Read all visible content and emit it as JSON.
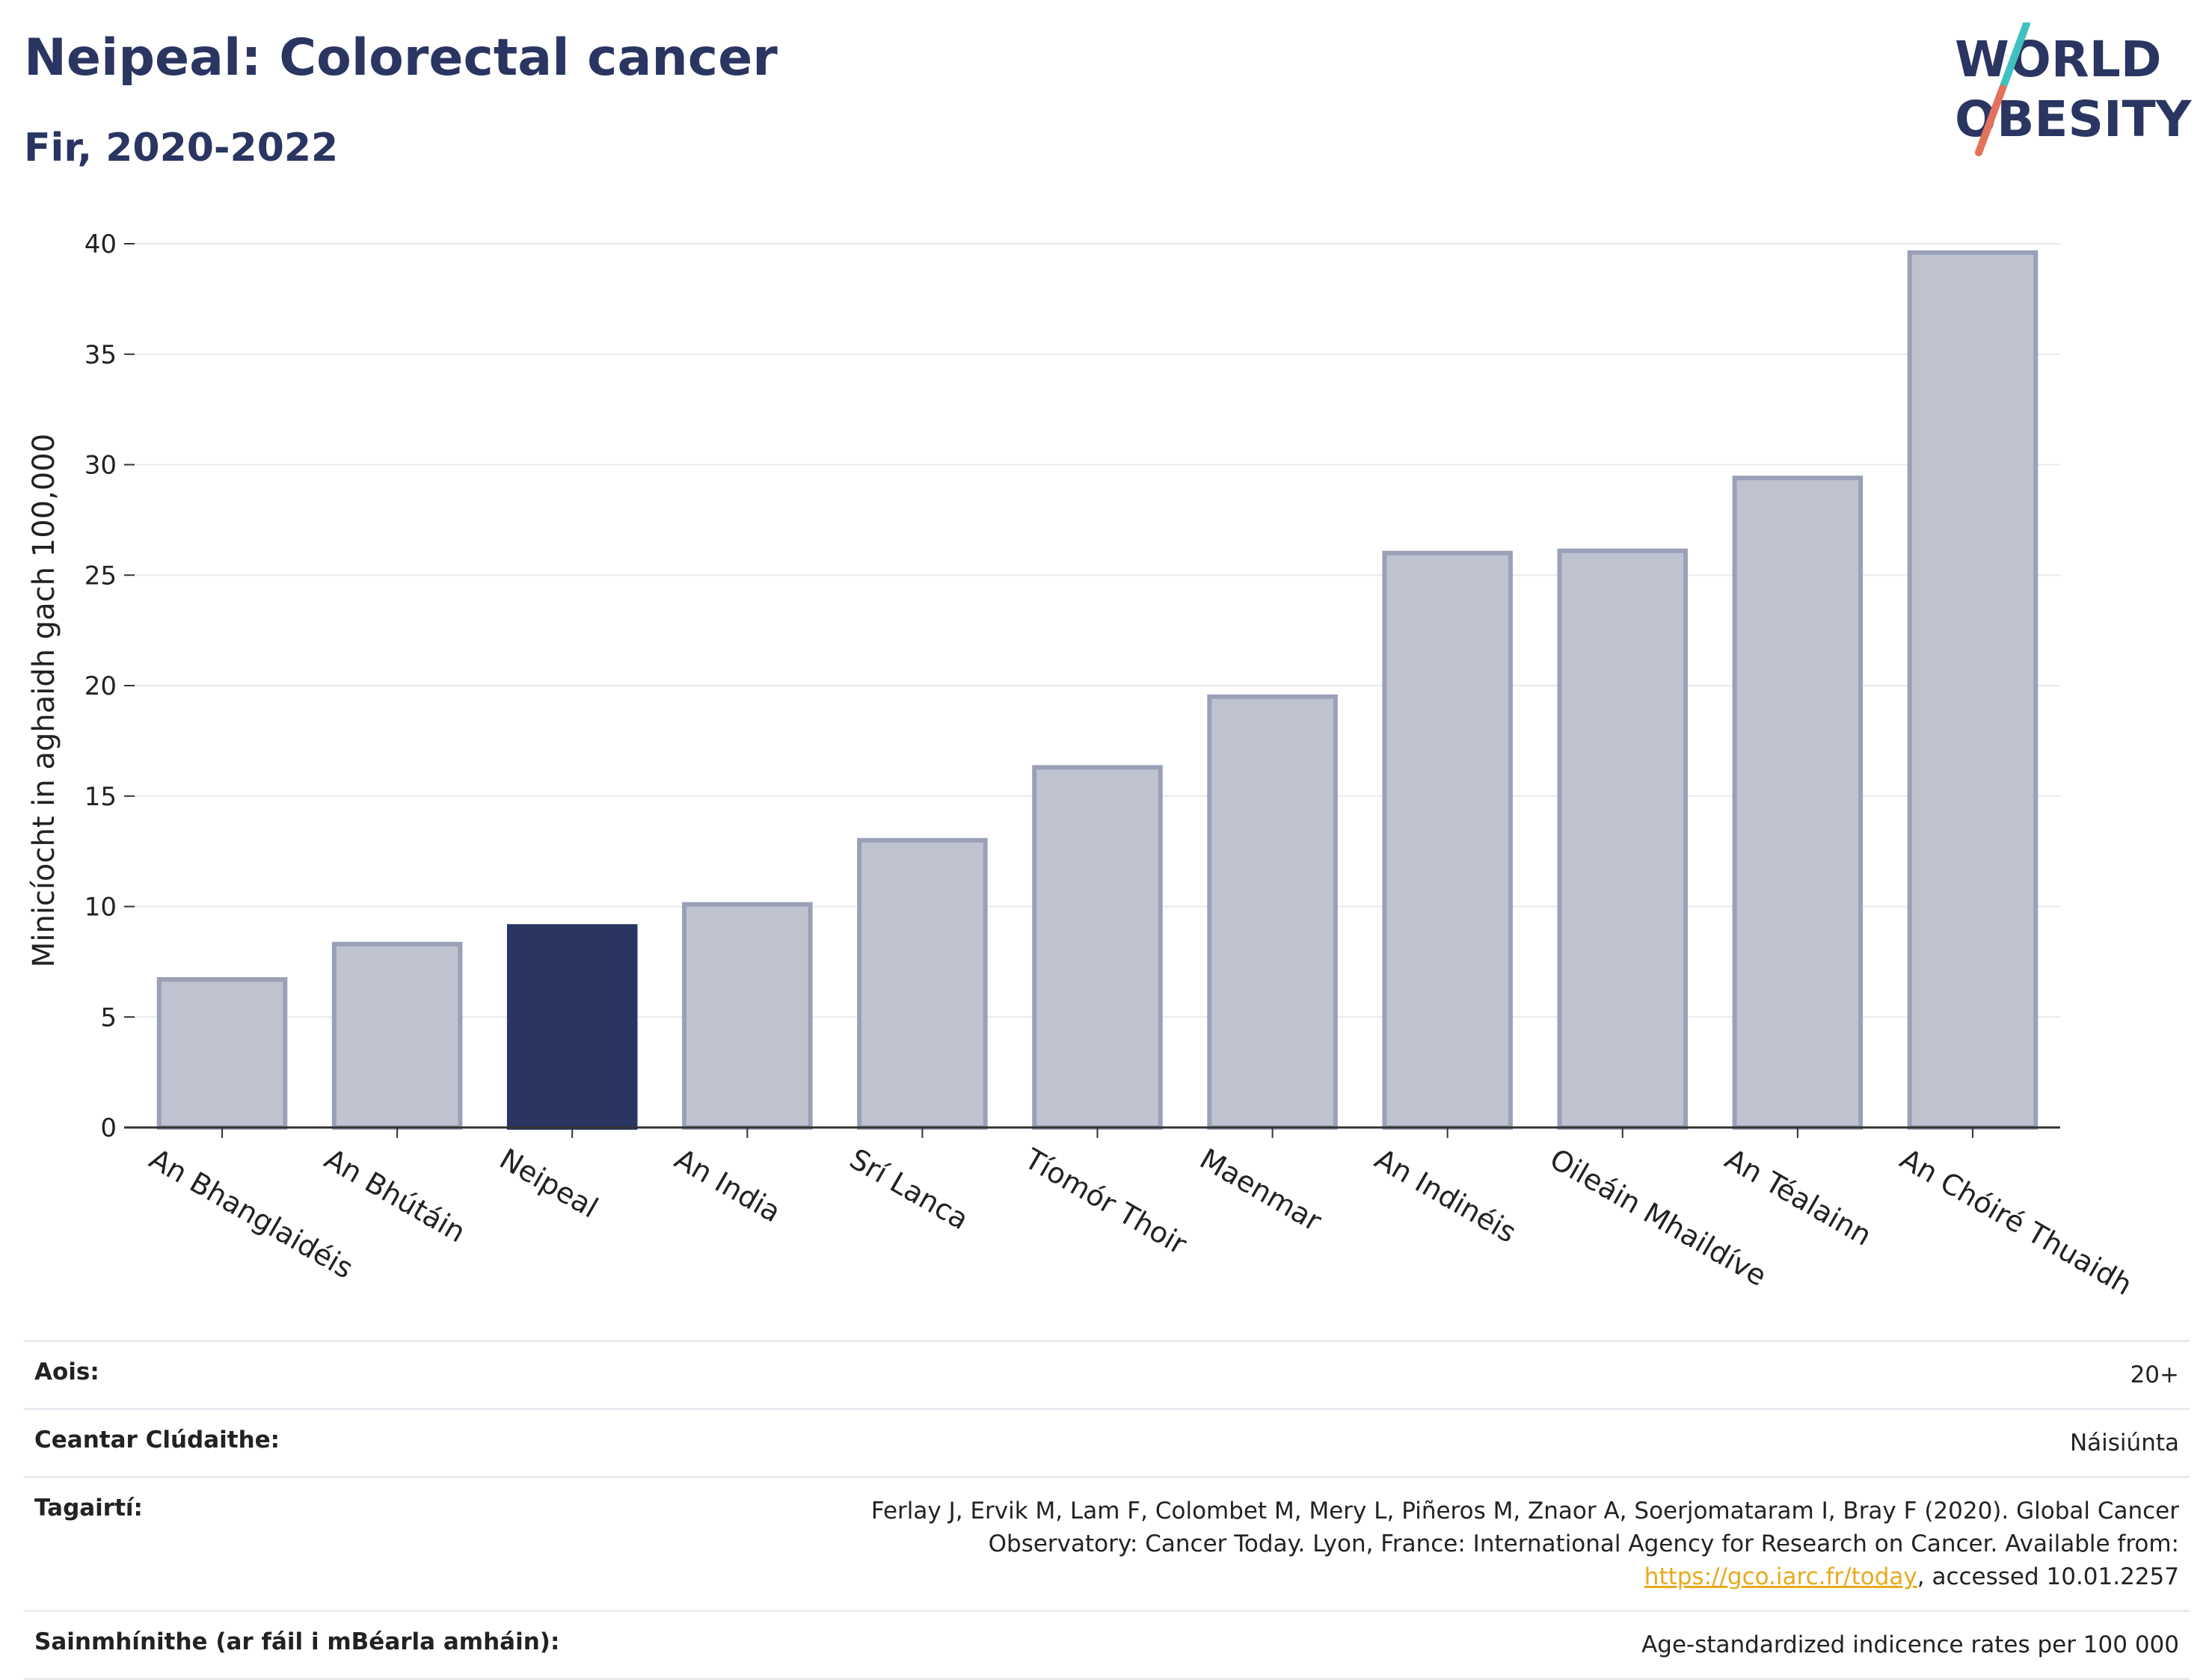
{
  "header": {
    "title": "Neipeal: Colorectal cancer",
    "subtitle": "Fir, 2020-2022"
  },
  "logo": {
    "line1": "WORLD",
    "line2": "OBESITY",
    "accent_colors": [
      "#3fc1c0",
      "#e2725b"
    ]
  },
  "colors": {
    "highlight": "#2a3561",
    "bar": "#bfc3d0",
    "bar_border": "#9aa0b8",
    "grid": "#e8eaf0",
    "link": "#e8a91c"
  },
  "chart_data": {
    "type": "bar",
    "ylabel": "Minicíocht in aghaidh gach 100,000",
    "xlabel": "",
    "ylim": [
      0,
      40
    ],
    "yticks": [
      0,
      5,
      10,
      15,
      20,
      25,
      30,
      35,
      40
    ],
    "grid": true,
    "highlight_category": "Neipeal",
    "categories": [
      "An Bhanglaidéis",
      "An Bhútáin",
      "Neipeal",
      "An India",
      "Srí Lanca",
      "Tíomór Thoir",
      "Maenmar",
      "An Indinéis",
      "Oileáin Mhaildíve",
      "An Téalainn",
      "An Chóiré Thuaidh"
    ],
    "values": [
      6.7,
      8.3,
      9.1,
      10.1,
      13.0,
      16.3,
      19.5,
      26.0,
      26.1,
      29.4,
      39.6
    ]
  },
  "info": {
    "age_label": "Aois:",
    "age_value": "20+",
    "coverage_label": "Ceantar Clúdaithe:",
    "coverage_value": "Náisiúnta",
    "refs_label": "Tagairtí:",
    "refs_text_1": "Ferlay J, Ervik M, Lam F, Colombet M, Mery L, Piñeros M, Znaor A, Soerjomataram I, Bray F (2020). Global Cancer Observatory: Cancer Today. Lyon, France: International Agency for Research on Cancer. Available from: ",
    "refs_link": "https://gco.iarc.fr/today",
    "refs_text_2": ", accessed 10.01.2257",
    "defs_label": "Sainmhínithe (ar fáil i mBéarla amháin):",
    "defs_value": "Age-standardized indicence rates per 100 000"
  }
}
